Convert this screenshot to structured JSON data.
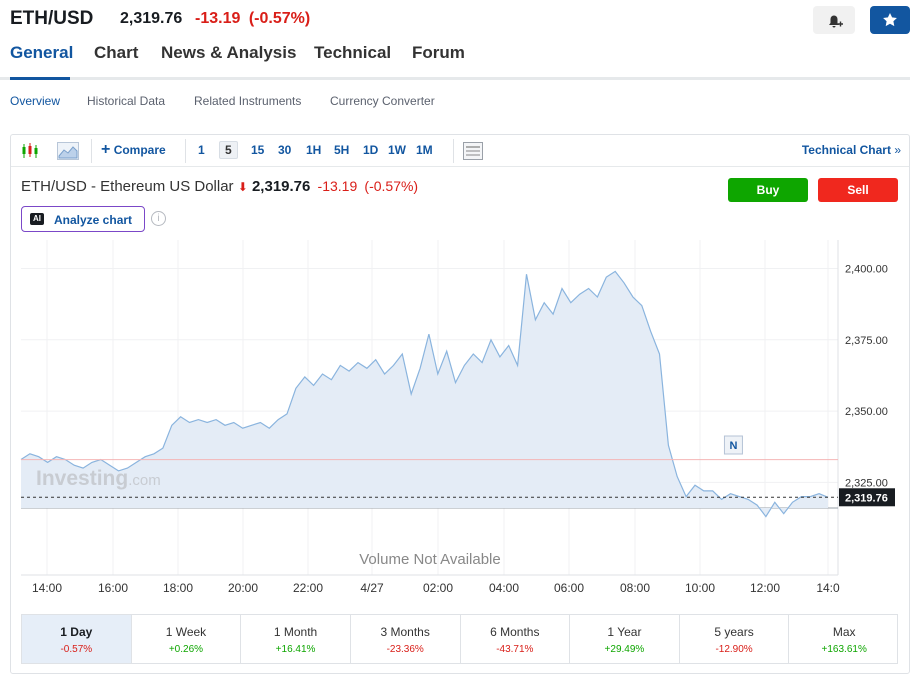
{
  "header": {
    "symbol": "ETH/USD",
    "price": "2,319.76",
    "change": "-13.19",
    "change_pct": "(-0.57%)"
  },
  "tabs": [
    "General",
    "Chart",
    "News & Analysis",
    "Technical",
    "Forum"
  ],
  "subtabs": [
    "Overview",
    "Historical Data",
    "Related Instruments",
    "Currency Converter"
  ],
  "toolbar": {
    "compare_label": "Compare",
    "intervals": [
      "1",
      "5",
      "15",
      "30",
      "1H",
      "5H",
      "1D",
      "1W",
      "1M"
    ],
    "selected_interval": "5",
    "technical_chart_label": "Technical Chart"
  },
  "instrument": {
    "name": "ETH/USD - Ethereum US Dollar",
    "price": "2,319.76",
    "change": "-13.19",
    "change_pct": "(-0.57%)"
  },
  "actions": {
    "buy": "Buy",
    "sell": "Sell",
    "analyze": "Analyze chart",
    "ai_badge": "AI"
  },
  "chart": {
    "watermark_main": "Investing",
    "watermark_suffix": ".com",
    "volume_text": "Volume Not Available",
    "marker_label": "N"
  },
  "chart_data": {
    "type": "area",
    "x_tick_labels": [
      "14:00",
      "16:00",
      "18:00",
      "20:00",
      "22:00",
      "4/27",
      "02:00",
      "04:00",
      "06:00",
      "08:00",
      "10:00",
      "12:00",
      "14:0"
    ],
    "y_tick_labels": [
      "2,400.00",
      "2,375.00",
      "2,350.00",
      "2,325.00"
    ],
    "ylim": [
      2316,
      2410
    ],
    "previous_close": 2332.95,
    "last_price_label": "2,319.76",
    "last_price": 2319.76,
    "series": [
      {
        "values": [
          2333,
          2335,
          2334,
          2332,
          2334,
          2333,
          2331,
          2330,
          2332,
          2333,
          2331,
          2329,
          2330,
          2332,
          2334,
          2335,
          2337,
          2345,
          2348,
          2346,
          2347,
          2346,
          2347,
          2345,
          2346,
          2344,
          2345,
          2346,
          2344,
          2347,
          2349,
          2358,
          2362,
          2359,
          2363,
          2361,
          2366,
          2364,
          2367,
          2365,
          2368,
          2363,
          2366,
          2370,
          2356,
          2365,
          2377,
          2363,
          2371,
          2360,
          2366,
          2370,
          2367,
          2375,
          2369,
          2373,
          2366,
          2398,
          2382,
          2388,
          2384,
          2393,
          2388,
          2391,
          2393,
          2390,
          2397,
          2399,
          2395,
          2390,
          2387,
          2378,
          2370,
          2338,
          2327,
          2320,
          2324,
          2322,
          2322,
          2319,
          2321,
          2320,
          2319,
          2317,
          2313,
          2318,
          2314,
          2318,
          2320,
          2320,
          2321,
          2319.76
        ]
      }
    ]
  },
  "ranges": [
    {
      "label": "1 Day",
      "value": "-0.57%"
    },
    {
      "label": "1 Week",
      "value": "+0.26%"
    },
    {
      "label": "1 Month",
      "value": "+16.41%"
    },
    {
      "label": "3 Months",
      "value": "-23.36%"
    },
    {
      "label": "6 Months",
      "value": "-43.71%"
    },
    {
      "label": "1 Year",
      "value": "+29.49%"
    },
    {
      "label": "5 years",
      "value": "-12.90%"
    },
    {
      "label": "Max",
      "value": "+163.61%"
    }
  ],
  "colors": {
    "accent": "#1256a0",
    "negative": "#d91e18",
    "positive": "#0ea600",
    "area_fill": "#e4ecf6",
    "line": "#8ab4de"
  }
}
